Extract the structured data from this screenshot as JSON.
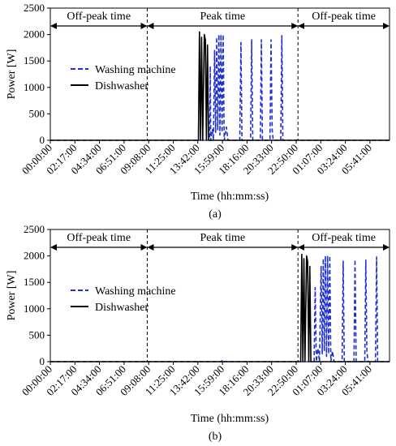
{
  "chart_data": [
    {
      "type": "line",
      "label": "(a)",
      "xlabel": "Time (hh:mm:ss)",
      "ylabel": "Power [W]",
      "ylim": [
        0,
        2500
      ],
      "yticks": [
        0,
        500,
        1000,
        1500,
        2000,
        2500
      ],
      "x_tick_labels": [
        "00:00:00",
        "02:17:00",
        "04:34:00",
        "06:51:00",
        "09:08:00",
        "11:25:00",
        "13:42:00",
        "15:59:00",
        "18:16:00",
        "20:33:00",
        "22:50:00",
        "01:07:00",
        "03:24:00",
        "05:41:00"
      ],
      "x_tick_hours": [
        0,
        2.2833,
        4.5667,
        6.85,
        9.1333,
        11.4167,
        13.7,
        15.9833,
        18.2667,
        20.55,
        22.8333,
        25.1167,
        27.4,
        29.6833
      ],
      "x_range_hours": [
        0,
        31.5
      ],
      "periods": [
        {
          "label": "Off-peak time",
          "start": 0,
          "end": 9
        },
        {
          "label": "Peak time",
          "start": 9,
          "end": 23
        },
        {
          "label": "Off-peak time",
          "start": 23,
          "end": 31.5
        }
      ],
      "legend_position": "left",
      "series": [
        {
          "name": "Washing machine",
          "style": "dashed",
          "color": "#1f2fd0",
          "points": [
            [
              14.8,
              0
            ],
            [
              14.85,
              1400
            ],
            [
              14.9,
              0
            ],
            [
              15.05,
              200
            ],
            [
              15.15,
              0
            ],
            [
              15.25,
              1700
            ],
            [
              15.35,
              150
            ],
            [
              15.45,
              1950
            ],
            [
              15.55,
              200
            ],
            [
              15.65,
              2000
            ],
            [
              15.75,
              100
            ],
            [
              15.85,
              2000
            ],
            [
              15.95,
              150
            ],
            [
              16.05,
              2000
            ],
            [
              16.15,
              0
            ],
            [
              16.35,
              250
            ],
            [
              16.5,
              0
            ],
            [
              17.6,
              0
            ],
            [
              17.7,
              1850
            ],
            [
              17.8,
              0
            ],
            [
              18.6,
              0
            ],
            [
              18.7,
              1900
            ],
            [
              18.8,
              0
            ],
            [
              19.5,
              0
            ],
            [
              19.6,
              1900
            ],
            [
              19.7,
              0
            ],
            [
              20.4,
              0
            ],
            [
              20.5,
              1900
            ],
            [
              20.6,
              200
            ],
            [
              20.7,
              0
            ],
            [
              21.4,
              0
            ],
            [
              21.5,
              1980
            ],
            [
              21.6,
              0
            ]
          ]
        },
        {
          "name": "Dishwasher",
          "style": "solid",
          "color": "#000000",
          "points": [
            [
              13.75,
              0
            ],
            [
              13.85,
              2050
            ],
            [
              13.95,
              0
            ],
            [
              14.05,
              1950
            ],
            [
              14.15,
              0
            ],
            [
              14.3,
              2000
            ],
            [
              14.4,
              1900
            ],
            [
              14.5,
              0
            ],
            [
              14.6,
              1800
            ],
            [
              14.7,
              0
            ]
          ]
        }
      ]
    },
    {
      "type": "line",
      "label": "(b)",
      "xlabel": "Time (hh:mm:ss)",
      "ylabel": "Power [W]",
      "ylim": [
        0,
        2500
      ],
      "yticks": [
        0,
        500,
        1000,
        1500,
        2000,
        2500
      ],
      "x_tick_labels": [
        "00:00:00",
        "02:17:00",
        "04:34:00",
        "06:51:00",
        "09:08:00",
        "11:25:00",
        "13:42:00",
        "15:59:00",
        "18:16:00",
        "20:33:00",
        "22:50:00",
        "01:07:00",
        "03:24:00",
        "05:41:00"
      ],
      "x_tick_hours": [
        0,
        2.2833,
        4.5667,
        6.85,
        9.1333,
        11.4167,
        13.7,
        15.9833,
        18.2667,
        20.55,
        22.8333,
        25.1167,
        27.4,
        29.6833
      ],
      "x_range_hours": [
        0,
        31.5
      ],
      "periods": [
        {
          "label": "Off-peak time",
          "start": 0,
          "end": 9
        },
        {
          "label": "Peak time",
          "start": 9,
          "end": 23
        },
        {
          "label": "Off-peak time",
          "start": 23,
          "end": 31.5
        }
      ],
      "legend_position": "left",
      "series": [
        {
          "name": "Washing machine",
          "style": "dashed",
          "color": "#1f2fd0",
          "points": [
            [
              15.9,
              0
            ],
            [
              15.95,
              30
            ],
            [
              16.0,
              0
            ],
            [
              24.5,
              0
            ],
            [
              24.6,
              1400
            ],
            [
              24.7,
              0
            ],
            [
              24.85,
              250
            ],
            [
              25.0,
              0
            ],
            [
              25.15,
              1800
            ],
            [
              25.25,
              150
            ],
            [
              25.35,
              1950
            ],
            [
              25.45,
              200
            ],
            [
              25.55,
              2000
            ],
            [
              25.65,
              100
            ],
            [
              25.75,
              2000
            ],
            [
              25.85,
              150
            ],
            [
              25.95,
              2000
            ],
            [
              26.05,
              0
            ],
            [
              26.2,
              200
            ],
            [
              26.35,
              0
            ],
            [
              27.1,
              0
            ],
            [
              27.2,
              1900
            ],
            [
              27.3,
              0
            ],
            [
              28.2,
              0
            ],
            [
              28.3,
              1930
            ],
            [
              28.4,
              0
            ],
            [
              29.2,
              0
            ],
            [
              29.3,
              1920
            ],
            [
              29.4,
              200
            ],
            [
              29.5,
              0
            ],
            [
              30.2,
              0
            ],
            [
              30.3,
              1980
            ],
            [
              30.4,
              0
            ]
          ]
        },
        {
          "name": "Dishwasher",
          "style": "solid",
          "color": "#000000",
          "points": [
            [
              23.25,
              0
            ],
            [
              23.35,
              2030
            ],
            [
              23.45,
              0
            ],
            [
              23.55,
              1950
            ],
            [
              23.65,
              0
            ],
            [
              23.8,
              2000
            ],
            [
              23.9,
              1900
            ],
            [
              24.0,
              0
            ],
            [
              24.1,
              1800
            ],
            [
              24.2,
              0
            ]
          ]
        }
      ]
    }
  ]
}
